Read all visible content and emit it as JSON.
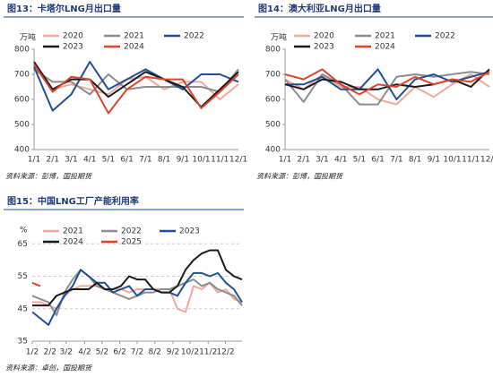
{
  "chart_data": [
    {
      "type": "line",
      "title": "图13：卡塔尔LNG月出口量",
      "source": "资料来源：彭博，国投期货",
      "y_unit": "万吨",
      "categories": [
        "1/1",
        "2/1",
        "3/1",
        "4/1",
        "5/1",
        "6/1",
        "7/1",
        "8/1",
        "9/1",
        "10/1",
        "11/1",
        "12/1"
      ],
      "ylim": [
        400,
        800
      ],
      "yticks": [
        400,
        500,
        600,
        700,
        800
      ],
      "grid": false,
      "series": [
        {
          "name": "2020",
          "color": "#f2a89a",
          "values": [
            740,
            640,
            660,
            640,
            620,
            680,
            690,
            640,
            670,
            670,
            600,
            660
          ]
        },
        {
          "name": "2021",
          "color": "#8c8c8c",
          "values": [
            720,
            670,
            670,
            620,
            700,
            640,
            650,
            650,
            650,
            650,
            630,
            720
          ]
        },
        {
          "name": "2022",
          "color": "#1f4e9a",
          "values": [
            730,
            555,
            620,
            750,
            640,
            680,
            720,
            680,
            640,
            700,
            700,
            670
          ]
        },
        {
          "name": "2023",
          "color": "#1a1a1a",
          "values": [
            750,
            640,
            680,
            680,
            610,
            660,
            710,
            680,
            650,
            570,
            640,
            710
          ]
        },
        {
          "name": "2024",
          "color": "#e0442a",
          "values": [
            740,
            630,
            690,
            680,
            545,
            640,
            690,
            680,
            680,
            565,
            630,
            700
          ]
        }
      ]
    },
    {
      "type": "line",
      "title": "图14：澳大利亚LNG月出口量",
      "source": "资料来源：彭博，国投期货",
      "y_unit": "万吨",
      "categories": [
        "1/1",
        "2/1",
        "3/1",
        "4/1",
        "5/1",
        "6/1",
        "7/1",
        "8/1",
        "9/1",
        "10/1",
        "11/1",
        "12/1"
      ],
      "ylim": [
        400,
        800
      ],
      "yticks": [
        400,
        500,
        600,
        700,
        800
      ],
      "grid": false,
      "series": [
        {
          "name": "2020",
          "color": "#f2a89a",
          "values": [
            680,
            640,
            700,
            650,
            650,
            600,
            580,
            650,
            610,
            660,
            700,
            650
          ]
        },
        {
          "name": "2021",
          "color": "#8c8c8c",
          "values": [
            680,
            590,
            700,
            660,
            580,
            580,
            690,
            700,
            690,
            700,
            710,
            700
          ]
        },
        {
          "name": "2022",
          "color": "#1f4e9a",
          "values": [
            660,
            660,
            690,
            640,
            640,
            720,
            600,
            680,
            700,
            670,
            690,
            710
          ]
        },
        {
          "name": "2023",
          "color": "#1a1a1a",
          "values": [
            660,
            640,
            680,
            670,
            640,
            640,
            660,
            650,
            660,
            680,
            650,
            720
          ]
        },
        {
          "name": "2024",
          "color": "#e0442a",
          "values": [
            700,
            680,
            720,
            660,
            620,
            660,
            650,
            690,
            660,
            680,
            670,
            710
          ]
        }
      ]
    },
    {
      "type": "line",
      "title": "图15：中国LNG工厂产能利用率",
      "source": "资料来源：卓创，国投期货",
      "y_unit": "%",
      "x": [
        0,
        2,
        4,
        6,
        8,
        10,
        12,
        14,
        16,
        18,
        20,
        22,
        24,
        26,
        28,
        30,
        32,
        34,
        36,
        38,
        40,
        42,
        44,
        46,
        48,
        50,
        52
      ],
      "xlim": [
        0,
        52
      ],
      "xticks": [
        {
          "value": 0,
          "label": "1/2"
        },
        {
          "value": 4.4,
          "label": "2/2"
        },
        {
          "value": 8.4,
          "label": "3/2"
        },
        {
          "value": 13,
          "label": "4/2"
        },
        {
          "value": 17.3,
          "label": "5/2"
        },
        {
          "value": 21.7,
          "label": "6/2"
        },
        {
          "value": 26,
          "label": "7/2"
        },
        {
          "value": 30.4,
          "label": "8/2"
        },
        {
          "value": 34.9,
          "label": "9/2"
        },
        {
          "value": 39.1,
          "label": "10/2"
        },
        {
          "value": 43.6,
          "label": "11/2"
        },
        {
          "value": 47.9,
          "label": "12/2"
        }
      ],
      "ylim": [
        35,
        67
      ],
      "yticks": [
        35,
        45,
        55,
        65
      ],
      "grid": true,
      "series": [
        {
          "name": "2021",
          "color": "#f2a89a",
          "values": [
            47,
            47,
            46,
            45,
            49,
            51,
            52,
            52,
            52,
            51,
            51,
            51,
            50,
            51,
            51,
            51,
            51,
            51,
            45,
            44,
            52,
            51,
            53,
            50,
            51,
            48,
            47
          ]
        },
        {
          "name": "2022",
          "color": "#8c8c8c",
          "values": [
            49,
            48,
            47,
            43,
            50,
            54,
            57,
            55,
            52,
            51,
            50,
            49,
            48,
            49,
            50,
            50,
            51,
            51,
            52,
            53,
            54,
            52,
            53,
            51,
            50,
            49,
            46
          ]
        },
        {
          "name": "2023",
          "color": "#1f4e9a",
          "values": [
            44,
            42,
            40,
            45,
            49,
            52,
            57,
            55,
            53,
            53,
            50,
            51,
            52,
            49,
            51,
            51,
            50,
            50,
            49,
            53,
            56,
            56,
            55,
            56,
            53,
            51,
            47
          ]
        },
        {
          "name": "2024",
          "color": "#1a1a1a",
          "values": [
            46,
            46,
            46,
            49,
            50,
            51,
            51,
            51,
            53,
            51,
            51,
            52,
            55,
            54,
            54,
            51,
            50,
            50,
            52,
            57,
            60,
            62,
            63,
            63,
            57,
            55,
            54
          ]
        },
        {
          "name": "2025",
          "color": "#e0442a",
          "values": [
            53,
            52,
            null,
            null,
            null,
            null,
            null,
            null,
            null,
            null,
            null,
            null,
            null,
            null,
            null,
            null,
            null,
            null,
            null,
            null,
            null,
            null,
            null,
            null,
            null,
            null,
            null
          ]
        }
      ]
    }
  ]
}
